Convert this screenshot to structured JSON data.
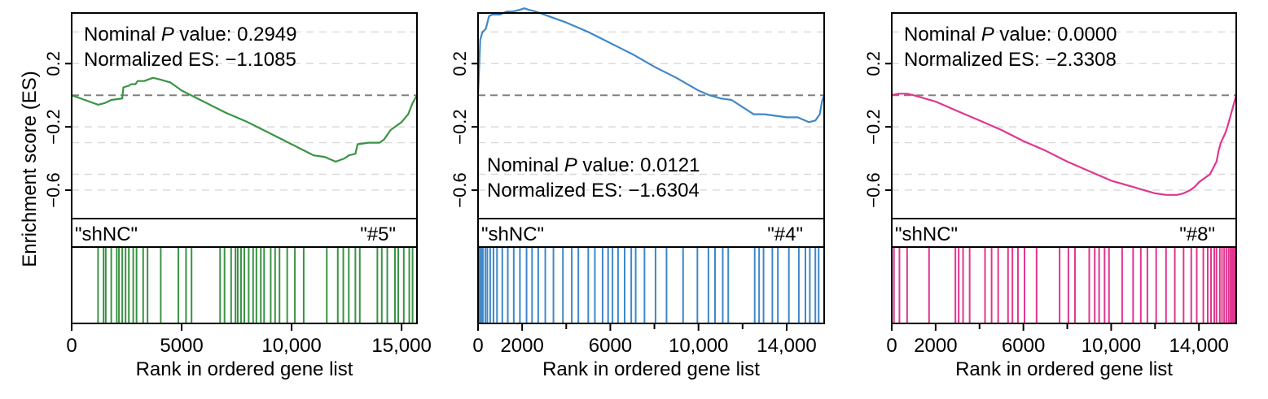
{
  "ylabel": "Enrichment score (ES)",
  "xlabel": "Rank in ordered gene list",
  "colors": {
    "green": "#3a9344",
    "blue": "#3f88c8",
    "pink": "#e0368e",
    "dash_zero": "#808080",
    "grid": "#d9d9d9"
  },
  "chart_data": [
    {
      "type": "line",
      "panel": "left",
      "color": "#3a9344",
      "xlim": [
        0,
        15700
      ],
      "ylim": [
        -0.78,
        0.52
      ],
      "xticks": [
        0,
        5000,
        10000,
        15000
      ],
      "xtick_labels": [
        "0",
        "5000",
        "10,000",
        "15,000"
      ],
      "yticks": [
        0.2,
        -0.2,
        -0.6
      ],
      "ytick_labels": [
        "0.2",
        "−0.2",
        "−0.6"
      ],
      "stat_line1_prefix": "Nominal ",
      "stat_line1_p": "P",
      "stat_line1_suffix": " value: 0.2949",
      "stat_line2": "Normalized ES: −1.1085",
      "stats_position": "top",
      "label_left": "\"shNC\"",
      "label_right": "\"#5\"",
      "label_right_color": "#7a5c3a",
      "es_curve": {
        "x": [
          0,
          600,
          1200,
          1500,
          1800,
          2300,
          2350,
          2600,
          2700,
          2900,
          3000,
          3300,
          3500,
          3700,
          4000,
          4500,
          5000,
          6000,
          7000,
          8000,
          9000,
          10000,
          11000,
          11500,
          12000,
          12200,
          12400,
          12600,
          12900,
          13000,
          13500,
          14000,
          14200,
          14500,
          14700,
          15000,
          15300,
          15500,
          15700
        ],
        "y": [
          0.0,
          -0.03,
          -0.06,
          -0.05,
          -0.03,
          -0.02,
          0.05,
          0.06,
          0.07,
          0.07,
          0.09,
          0.09,
          0.1,
          0.11,
          0.1,
          0.08,
          0.03,
          -0.04,
          -0.11,
          -0.17,
          -0.24,
          -0.31,
          -0.38,
          -0.39,
          -0.42,
          -0.41,
          -0.4,
          -0.38,
          -0.37,
          -0.31,
          -0.3,
          -0.3,
          -0.28,
          -0.22,
          -0.2,
          -0.17,
          -0.12,
          -0.05,
          0.0
        ]
      },
      "hits": [
        1200,
        1450,
        1550,
        1800,
        2050,
        2150,
        2300,
        2450,
        2600,
        2800,
        2950,
        3250,
        3450,
        4050,
        4850,
        5200,
        5450,
        6750,
        6950,
        7250,
        7450,
        7550,
        7700,
        7850,
        8050,
        8250,
        8400,
        8600,
        8750,
        9050,
        9250,
        9450,
        9800,
        10150,
        10550,
        11600,
        12100,
        12350,
        12600,
        12900,
        13100,
        13900,
        14100,
        14350,
        14700,
        14850,
        15100,
        15350,
        15500
      ]
    },
    {
      "type": "line",
      "panel": "middle",
      "color": "#3f88c8",
      "xlim": [
        0,
        15700
      ],
      "ylim": [
        -0.78,
        0.52
      ],
      "xticks": [
        0,
        2000,
        6000,
        10000,
        14000
      ],
      "minor_xticks": [
        4000,
        8000,
        12000
      ],
      "xtick_labels": [
        "0",
        "2000",
        "6000",
        "10,000",
        "14,000"
      ],
      "yticks": [
        0.2,
        -0.2,
        -0.6
      ],
      "ytick_labels": [
        "0.2",
        "−0.2",
        "−0.6"
      ],
      "stat_line1_prefix": "Nominal ",
      "stat_line1_p": "P",
      "stat_line1_suffix": " value: 0.0121",
      "stat_line2": "Normalized ES: −1.6304",
      "stats_position": "bottom",
      "label_left": "\"shNC\"",
      "label_right": "\"#4\"",
      "label_right_color": "#2e4a8c",
      "es_curve": {
        "x": [
          0,
          100,
          200,
          350,
          500,
          650,
          800,
          1000,
          1300,
          1600,
          1900,
          2100,
          2300,
          2600,
          3000,
          4000,
          5000,
          6000,
          7000,
          8000,
          9000,
          10000,
          10500,
          11000,
          11500,
          12500,
          13000,
          13500,
          14000,
          14500,
          15000,
          15300,
          15500,
          15600,
          15700
        ],
        "y": [
          0.0,
          0.35,
          0.4,
          0.42,
          0.5,
          0.51,
          0.51,
          0.51,
          0.53,
          0.53,
          0.54,
          0.55,
          0.54,
          0.53,
          0.51,
          0.46,
          0.4,
          0.33,
          0.26,
          0.18,
          0.11,
          0.03,
          0.0,
          -0.02,
          -0.03,
          -0.12,
          -0.12,
          -0.13,
          -0.14,
          -0.14,
          -0.17,
          -0.16,
          -0.12,
          -0.04,
          0.0
        ]
      },
      "hits": [
        20,
        80,
        150,
        220,
        330,
        420,
        550,
        700,
        860,
        1100,
        1350,
        1620,
        1900,
        2200,
        2450,
        2730,
        3050,
        3420,
        3850,
        4250,
        4550,
        5000,
        5300,
        5650,
        5900,
        6100,
        6350,
        6650,
        6950,
        7150,
        7550,
        8050,
        8550,
        9300,
        9950,
        10450,
        10750,
        11100,
        11350,
        12550,
        12750,
        12950,
        13350,
        13600,
        14100,
        14550,
        14850,
        15050,
        15300,
        15450
      ]
    },
    {
      "type": "line",
      "panel": "right",
      "color": "#e0368e",
      "xlim": [
        0,
        15700
      ],
      "ylim": [
        -0.78,
        0.52
      ],
      "xticks": [
        0,
        2000,
        6000,
        10000,
        14000
      ],
      "minor_xticks": [
        4000,
        8000,
        12000
      ],
      "xtick_labels": [
        "0",
        "2000",
        "6000",
        "10,000",
        "14,000"
      ],
      "yticks": [
        0.2,
        -0.2,
        -0.6
      ],
      "ytick_labels": [
        "0.2",
        "−0.2",
        "−0.6"
      ],
      "stat_line1_prefix": "Nominal ",
      "stat_line1_p": "P",
      "stat_line1_suffix": " value: 0.0000",
      "stat_line2": "Normalized ES: −2.3308",
      "stats_position": "top",
      "label_left": "\"shNC\"",
      "label_right": "\"#8\"",
      "label_right_color": "#d13a2c",
      "es_curve": {
        "x": [
          0,
          300,
          700,
          1000,
          2000,
          3000,
          4000,
          5000,
          6000,
          7000,
          8000,
          9000,
          10000,
          11000,
          12000,
          12500,
          13000,
          13300,
          13600,
          13800,
          14000,
          14500,
          14800,
          14900,
          15000,
          15100,
          15200,
          15300,
          15400,
          15500,
          15600,
          15700
        ],
        "y": [
          0.0,
          0.01,
          0.01,
          0.0,
          -0.04,
          -0.1,
          -0.16,
          -0.22,
          -0.29,
          -0.35,
          -0.42,
          -0.48,
          -0.54,
          -0.58,
          -0.62,
          -0.63,
          -0.63,
          -0.62,
          -0.6,
          -0.58,
          -0.55,
          -0.5,
          -0.42,
          -0.35,
          -0.3,
          -0.27,
          -0.24,
          -0.2,
          -0.15,
          -0.1,
          -0.05,
          0.0
        ]
      },
      "hits": [
        100,
        350,
        700,
        1700,
        2900,
        3050,
        3250,
        3550,
        4250,
        4550,
        4850,
        5300,
        5500,
        5750,
        6050,
        6600,
        7650,
        8050,
        8350,
        9000,
        9250,
        9450,
        9700,
        9900,
        10500,
        11000,
        11350,
        11650,
        12050,
        12500,
        12900,
        13300,
        13650,
        13900,
        14200,
        14400,
        14550,
        14700,
        14800,
        14950,
        15050,
        15150,
        15250,
        15350,
        15430,
        15500,
        15560,
        15620,
        15680
      ]
    }
  ]
}
